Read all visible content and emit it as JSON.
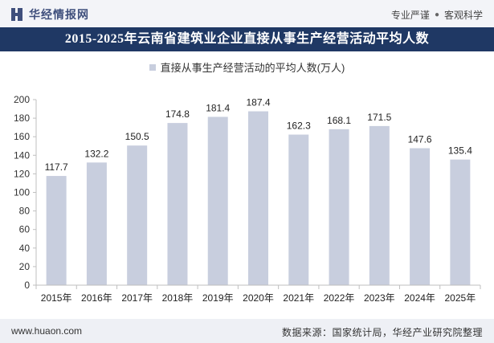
{
  "header": {
    "brand_name": "华经情报网",
    "slogan_left": "专业严谨",
    "slogan_right": "客观科学"
  },
  "footer": {
    "url": "www.huaon.com",
    "source": "数据来源：国家统计局，华经产业研究院整理"
  },
  "colors": {
    "bar": "#c8cede",
    "title_bg": "#1f3864",
    "brand": "#3f4f7c"
  },
  "chart_data": {
    "type": "bar",
    "title": "2015-2025年云南省建筑业企业直接从事生产经营活动平均人数",
    "series_name": "直接从事生产经营活动的平均人数(万人)",
    "categories": [
      "2015年",
      "2016年",
      "2017年",
      "2018年",
      "2019年",
      "2020年",
      "2021年",
      "2022年",
      "2023年",
      "2024年",
      "2025年"
    ],
    "values": [
      117.7,
      132.2,
      150.5,
      174.8,
      181.4,
      187.4,
      162.3,
      168.1,
      171.5,
      147.6,
      135.4
    ],
    "ylim": [
      0,
      200
    ],
    "yticks": [
      0,
      20,
      40,
      60,
      80,
      100,
      120,
      140,
      160,
      180,
      200
    ],
    "xlabel": "",
    "ylabel": ""
  }
}
